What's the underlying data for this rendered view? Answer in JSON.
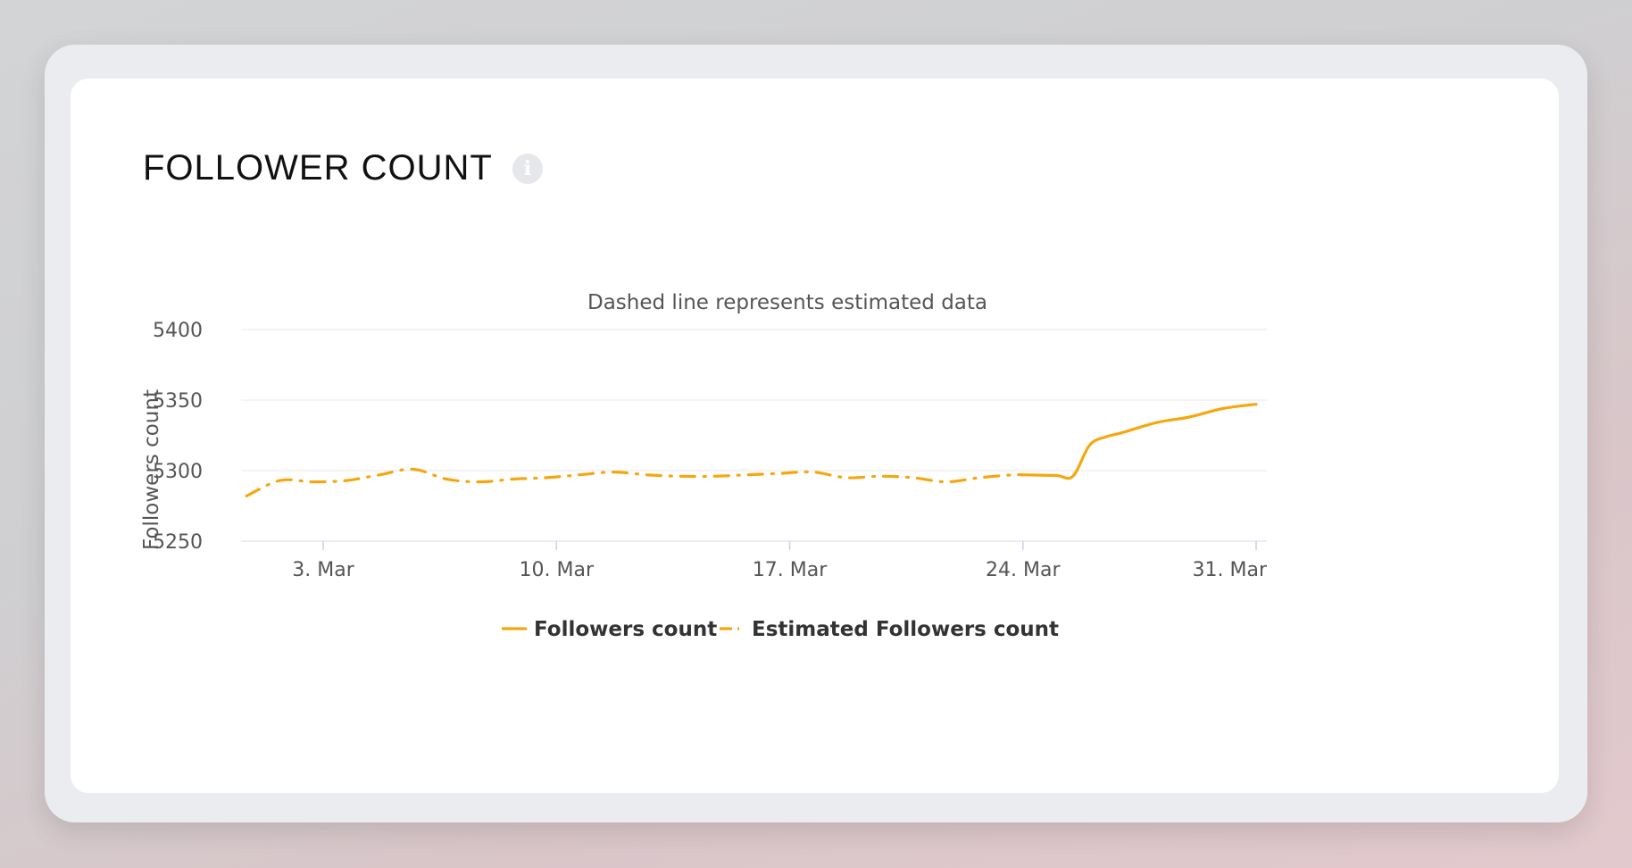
{
  "card": {
    "title": "FOLLOWER COUNT",
    "info_icon": "info-icon"
  },
  "chart_data": {
    "type": "line",
    "title": "Dashed line represents estimated data",
    "ylabel": "Followers count",
    "xlabel": "",
    "ylim": [
      5250,
      5400
    ],
    "yticks": [
      5250,
      5300,
      5350,
      5400
    ],
    "xticks": [
      {
        "day": 3,
        "label": "3. Mar"
      },
      {
        "day": 10,
        "label": "10. Mar"
      },
      {
        "day": 17,
        "label": "17. Mar"
      },
      {
        "day": 24,
        "label": "24. Mar"
      },
      {
        "day": 31,
        "label": "31. Mar"
      }
    ],
    "x_unit": "day of March",
    "grid": true,
    "legend_position": "bottom-center",
    "colors": {
      "series": "#f5a70f",
      "grid": "#ececec",
      "axis_text": "#555555"
    },
    "series": [
      {
        "name": "Followers count",
        "style": "solid",
        "x": [
          24,
          25,
          25.5,
          26,
          26.5,
          27,
          28,
          29,
          30,
          31
        ],
        "y": [
          5297,
          5296.5,
          5296,
          5318,
          5324,
          5327,
          5334,
          5338,
          5344,
          5347
        ]
      },
      {
        "name": "Estimated Followers count",
        "style": "dashed",
        "x": [
          0.7,
          1.7,
          2.7,
          3.7,
          4.7,
          5.7,
          6.7,
          7.7,
          8.7,
          9.7,
          10.7,
          11.7,
          12.7,
          13.7,
          14.7,
          15.7,
          16.7,
          17.7,
          18.7,
          19.7,
          20.7,
          21.7,
          22.7,
          23.7,
          24.0
        ],
        "y": [
          5282,
          5293,
          5292,
          5293,
          5297,
          5301,
          5294,
          5292,
          5294,
          5295,
          5297,
          5299,
          5297,
          5296,
          5296,
          5297,
          5298,
          5299,
          5295,
          5296,
          5295,
          5292,
          5295,
          5297,
          5297
        ]
      }
    ]
  }
}
